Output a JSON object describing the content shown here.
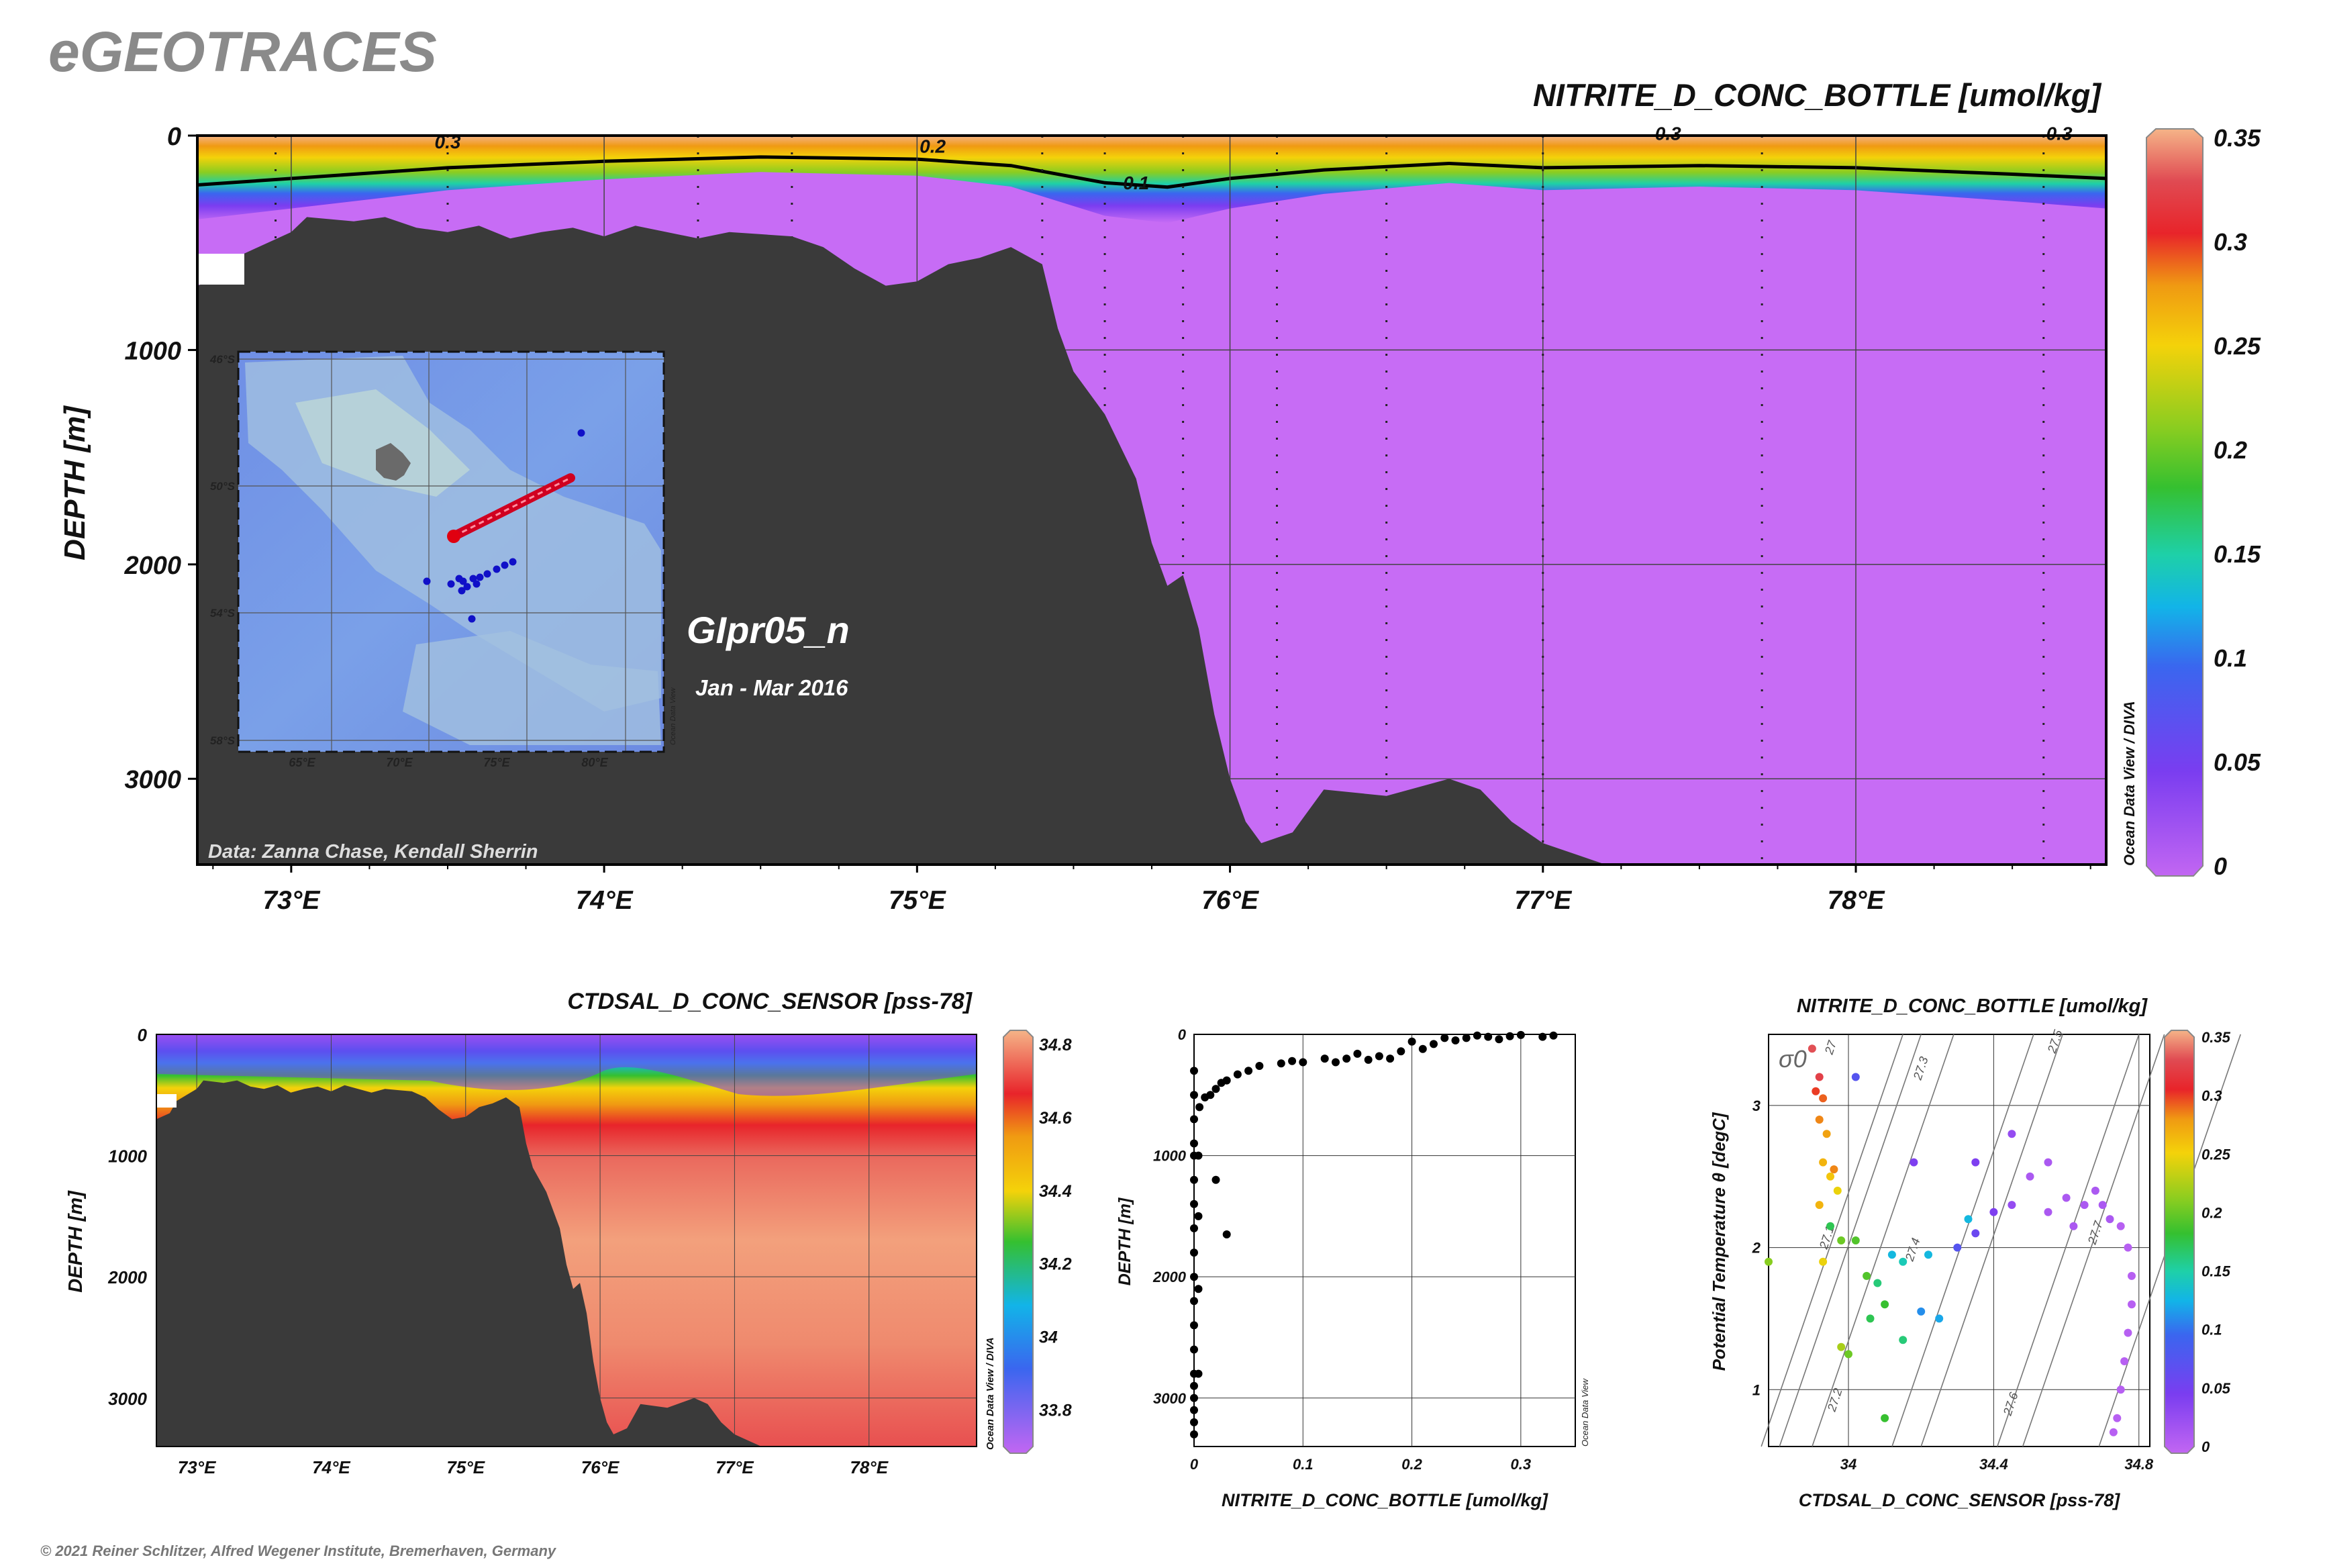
{
  "header": {
    "brand": "eGEOTRACES",
    "main_title": "NITRITE_D_CONC_BOTTLE [umol/kg]",
    "section_name": "GIpr05_n",
    "date_range": "Jan - Mar 2016",
    "data_credit": "Data: Zanna Chase, Kendall Sherrin",
    "copyright": "© 2021 Reiner Schlitzer, Alfred Wegener Institute, Bremerhaven, Germany",
    "odv_tag_main": "Ocean Data View / DIVA",
    "odv_tag_map": "Ocean Data View",
    "odv_tag_scatter": "Ocean Data View"
  },
  "colors": {
    "seafloor": "#3a3a3a",
    "deep_water": "#c76cf5",
    "station_line": "#d00020",
    "station_dot": "#1010c8",
    "colorscale": [
      "#c266f2",
      "#7a3df0",
      "#3a66ef",
      "#12b4e8",
      "#1ed0a8",
      "#35c030",
      "#8acd20",
      "#f4d20a",
      "#f09a12",
      "#e8242a",
      "#e04a52",
      "#f5b488"
    ]
  },
  "chart_data": [
    {
      "type": "heatmap",
      "id": "nitrite-section",
      "title": "NITRITE_D_CONC_BOTTLE [umol/kg]",
      "xlabel": "",
      "ylabel": "DEPTH [m]",
      "xlim": [
        72.7,
        78.8
      ],
      "ylim": [
        3400,
        0
      ],
      "x_ticks": [
        73,
        74,
        75,
        76,
        77,
        78
      ],
      "x_tick_labels": [
        "73°E",
        "74°E",
        "75°E",
        "76°E",
        "77°E",
        "78°E"
      ],
      "y_ticks": [
        0,
        1000,
        2000,
        3000
      ],
      "y_tick_labels": [
        "0",
        "1000",
        "2000",
        "3000"
      ],
      "colorbar": {
        "range": [
          0,
          0.35
        ],
        "ticks": [
          "0",
          "0.05",
          "0.1",
          "0.15",
          "0.2",
          "0.25",
          "0.3",
          "0.35"
        ]
      },
      "contour_labels": [
        {
          "x": 73.5,
          "depth": 60,
          "text": "0.3"
        },
        {
          "x": 75.05,
          "depth": 80,
          "text": "0.2"
        },
        {
          "x": 75.7,
          "depth": 250,
          "text": "0.1"
        },
        {
          "x": 77.4,
          "depth": 20,
          "text": "0.3"
        },
        {
          "x": 78.65,
          "depth": 20,
          "text": "0.3"
        }
      ],
      "contour_01_depths": [
        [
          72.7,
          230
        ],
        [
          73.0,
          200
        ],
        [
          73.5,
          150
        ],
        [
          74.0,
          120
        ],
        [
          74.5,
          100
        ],
        [
          75.0,
          110
        ],
        [
          75.3,
          140
        ],
        [
          75.6,
          220
        ],
        [
          75.8,
          240
        ],
        [
          76.0,
          200
        ],
        [
          76.3,
          160
        ],
        [
          76.7,
          130
        ],
        [
          77.0,
          150
        ],
        [
          77.5,
          140
        ],
        [
          78.0,
          150
        ],
        [
          78.5,
          180
        ],
        [
          78.8,
          200
        ]
      ],
      "bathymetry": [
        [
          72.7,
          700
        ],
        [
          72.8,
          650
        ],
        [
          72.85,
          550
        ],
        [
          73.0,
          450
        ],
        [
          73.05,
          380
        ],
        [
          73.2,
          400
        ],
        [
          73.3,
          380
        ],
        [
          73.4,
          430
        ],
        [
          73.5,
          450
        ],
        [
          73.6,
          420
        ],
        [
          73.7,
          480
        ],
        [
          73.8,
          450
        ],
        [
          73.9,
          430
        ],
        [
          74.0,
          470
        ],
        [
          74.1,
          420
        ],
        [
          74.2,
          450
        ],
        [
          74.3,
          480
        ],
        [
          74.4,
          450
        ],
        [
          74.5,
          460
        ],
        [
          74.6,
          470
        ],
        [
          74.7,
          520
        ],
        [
          74.8,
          620
        ],
        [
          74.9,
          700
        ],
        [
          75.0,
          680
        ],
        [
          75.1,
          600
        ],
        [
          75.2,
          570
        ],
        [
          75.3,
          520
        ],
        [
          75.4,
          600
        ],
        [
          75.45,
          900
        ],
        [
          75.5,
          1100
        ],
        [
          75.6,
          1300
        ],
        [
          75.7,
          1600
        ],
        [
          75.75,
          1900
        ],
        [
          75.8,
          2100
        ],
        [
          75.85,
          2050
        ],
        [
          75.9,
          2300
        ],
        [
          75.95,
          2700
        ],
        [
          76.0,
          3000
        ],
        [
          76.05,
          3200
        ],
        [
          76.1,
          3300
        ],
        [
          76.2,
          3250
        ],
        [
          76.3,
          3050
        ],
        [
          76.5,
          3080
        ],
        [
          76.7,
          3000
        ],
        [
          76.8,
          3050
        ],
        [
          76.9,
          3200
        ],
        [
          77.0,
          3300
        ],
        [
          77.1,
          3350
        ],
        [
          77.2,
          3400
        ]
      ],
      "station_x": [
        72.95,
        73.5,
        74.3,
        74.6,
        75.4,
        75.6,
        75.85,
        76.15,
        76.5,
        77.0,
        77.7,
        78.6
      ]
    },
    {
      "type": "heatmap",
      "id": "salinity-section",
      "title": "CTDSAL_D_CONC_SENSOR [pss-78]",
      "xlabel": "",
      "ylabel": "DEPTH [m]",
      "xlim": [
        72.7,
        78.8
      ],
      "ylim": [
        3400,
        0
      ],
      "x_ticks": [
        73,
        74,
        75,
        76,
        77,
        78
      ],
      "x_tick_labels": [
        "73°E",
        "74°E",
        "75°E",
        "76°E",
        "77°E",
        "78°E"
      ],
      "y_ticks": [
        0,
        1000,
        2000,
        3000
      ],
      "y_tick_labels": [
        "0",
        "1000",
        "2000",
        "3000"
      ],
      "colorbar": {
        "range": [
          33.7,
          34.82
        ],
        "ticks": [
          "33.8",
          "34",
          "34.2",
          "34.4",
          "34.6",
          "34.8"
        ]
      }
    },
    {
      "type": "scatter",
      "id": "nitrite-profile",
      "title": "",
      "xlabel": "NITRITE_D_CONC_BOTTLE [umol/kg]",
      "ylabel": "DEPTH [m]",
      "xlim": [
        0,
        0.35
      ],
      "ylim": [
        3400,
        0
      ],
      "x_ticks": [
        "0",
        "0.1",
        "0.2",
        "0.3"
      ],
      "y_ticks": [
        "0",
        "1000",
        "2000",
        "3000"
      ],
      "points": [
        [
          0.33,
          10
        ],
        [
          0.32,
          20
        ],
        [
          0.3,
          5
        ],
        [
          0.29,
          15
        ],
        [
          0.28,
          40
        ],
        [
          0.27,
          20
        ],
        [
          0.26,
          10
        ],
        [
          0.25,
          30
        ],
        [
          0.24,
          50
        ],
        [
          0.23,
          30
        ],
        [
          0.22,
          80
        ],
        [
          0.21,
          120
        ],
        [
          0.2,
          60
        ],
        [
          0.19,
          140
        ],
        [
          0.18,
          200
        ],
        [
          0.17,
          180
        ],
        [
          0.16,
          210
        ],
        [
          0.15,
          160
        ],
        [
          0.14,
          200
        ],
        [
          0.13,
          230
        ],
        [
          0.12,
          200
        ],
        [
          0.1,
          230
        ],
        [
          0.09,
          220
        ],
        [
          0.08,
          240
        ],
        [
          0.06,
          260
        ],
        [
          0.05,
          300
        ],
        [
          0.04,
          330
        ],
        [
          0.03,
          380
        ],
        [
          0.025,
          400
        ],
        [
          0.02,
          450
        ],
        [
          0.015,
          500
        ],
        [
          0.01,
          520
        ],
        [
          0.005,
          600
        ],
        [
          0.02,
          1200
        ],
        [
          0.03,
          1650
        ],
        [
          0,
          300
        ],
        [
          0,
          500
        ],
        [
          0,
          700
        ],
        [
          0,
          900
        ],
        [
          0,
          1000
        ],
        [
          0,
          1200
        ],
        [
          0,
          1400
        ],
        [
          0,
          1600
        ],
        [
          0,
          1800
        ],
        [
          0,
          2000
        ],
        [
          0,
          2200
        ],
        [
          0,
          2400
        ],
        [
          0,
          2600
        ],
        [
          0,
          2800
        ],
        [
          0,
          2900
        ],
        [
          0,
          3000
        ],
        [
          0,
          3100
        ],
        [
          0,
          3200
        ],
        [
          0,
          3300
        ],
        [
          0.004,
          1000
        ],
        [
          0.004,
          1500
        ],
        [
          0.004,
          2100
        ],
        [
          0.004,
          2800
        ]
      ]
    },
    {
      "type": "scatter",
      "id": "ts-diagram",
      "title": "NITRITE_D_CONC_BOTTLE [umol/kg]",
      "xlabel": "CTDSAL_D_CONC_SENSOR [pss-78]",
      "ylabel": "Potential Temperature θ [degC]",
      "xlim": [
        33.78,
        34.83
      ],
      "ylim": [
        0.6,
        3.5
      ],
      "x_ticks": [
        "34",
        "34.4",
        "34.8"
      ],
      "y_ticks": [
        "1",
        "2",
        "3"
      ],
      "sigma_label": "σ0",
      "isopycnal_labels": [
        "27",
        "27.1",
        "27.2",
        "27.3",
        "27.4",
        "27.5",
        "27.6",
        "27.7"
      ],
      "colorbar": {
        "range": [
          0,
          0.35
        ],
        "ticks": [
          "0",
          "0.05",
          "0.1",
          "0.15",
          "0.2",
          "0.25",
          "0.3",
          "0.35"
        ]
      },
      "points": [
        [
          33.9,
          3.4,
          0.32
        ],
        [
          33.92,
          3.2,
          0.31
        ],
        [
          33.91,
          3.1,
          0.28
        ],
        [
          33.93,
          3.05,
          0.27
        ],
        [
          33.92,
          2.9,
          0.26
        ],
        [
          33.94,
          2.8,
          0.25
        ],
        [
          33.93,
          2.6,
          0.24
        ],
        [
          33.95,
          2.5,
          0.23
        ],
        [
          33.92,
          2.3,
          0.24
        ],
        [
          33.96,
          2.55,
          0.26
        ],
        [
          33.97,
          2.4,
          0.22
        ],
        [
          33.95,
          2.15,
          0.15
        ],
        [
          33.98,
          2.05,
          0.18
        ],
        [
          34.02,
          2.05,
          0.17
        ],
        [
          33.93,
          1.9,
          0.22
        ],
        [
          33.78,
          1.9,
          0.19
        ],
        [
          34.05,
          1.8,
          0.17
        ],
        [
          34.08,
          1.75,
          0.14
        ],
        [
          34.12,
          1.95,
          0.1
        ],
        [
          34.15,
          1.9,
          0.12
        ],
        [
          34.1,
          1.6,
          0.16
        ],
        [
          34.06,
          1.5,
          0.15
        ],
        [
          34.2,
          1.55,
          0.08
        ],
        [
          34.22,
          1.95,
          0.1
        ],
        [
          34.3,
          2.0,
          0.05
        ],
        [
          34.35,
          2.1,
          0.04
        ],
        [
          34.4,
          2.25,
          0.03
        ],
        [
          34.45,
          2.3,
          0.02
        ],
        [
          34.5,
          2.5,
          0.01
        ],
        [
          34.55,
          2.6,
          0.01
        ],
        [
          34.6,
          2.35,
          0.01
        ],
        [
          34.65,
          2.3,
          0.01
        ],
        [
          34.7,
          2.3,
          0.01
        ],
        [
          34.72,
          2.2,
          0.01
        ],
        [
          34.75,
          2.15,
          0.005
        ],
        [
          34.77,
          2.0,
          0.005
        ],
        [
          34.78,
          1.8,
          0.005
        ],
        [
          34.78,
          1.6,
          0.005
        ],
        [
          34.77,
          1.4,
          0.005
        ],
        [
          34.76,
          1.2,
          0.005
        ],
        [
          34.75,
          1.0,
          0.005
        ],
        [
          34.74,
          0.8,
          0.005
        ],
        [
          34.73,
          0.7,
          0.005
        ],
        [
          34.25,
          1.5,
          0.09
        ],
        [
          34.15,
          1.35,
          0.14
        ],
        [
          34.0,
          1.25,
          0.18
        ],
        [
          33.98,
          1.3,
          0.2
        ],
        [
          34.1,
          0.8,
          0.16
        ],
        [
          34.33,
          2.2,
          0.1
        ],
        [
          34.45,
          2.8,
          0.02
        ],
        [
          34.35,
          2.6,
          0.03
        ],
        [
          34.55,
          2.25,
          0.01
        ],
        [
          34.62,
          2.15,
          0.01
        ],
        [
          34.68,
          2.4,
          0.01
        ],
        [
          34.02,
          3.2,
          0.05
        ],
        [
          34.18,
          2.6,
          0.03
        ]
      ]
    }
  ],
  "inset_map": {
    "lat_labels": [
      "46°S",
      "50°S",
      "54°S",
      "58°S"
    ],
    "lon_labels": [
      "65°E",
      "70°E",
      "75°E",
      "80°E"
    ]
  }
}
